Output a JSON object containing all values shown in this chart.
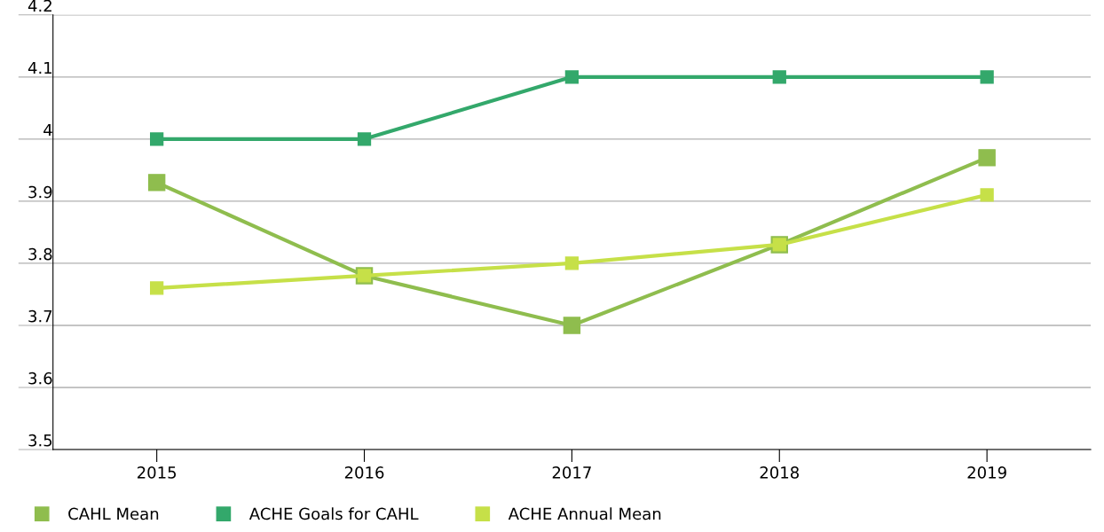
{
  "chart_data": {
    "type": "line",
    "categories": [
      "2015",
      "2016",
      "2017",
      "2018",
      "2019"
    ],
    "series": [
      {
        "name": "CAHL Mean",
        "color": "#8fbd4e",
        "values": [
          3.93,
          3.78,
          3.7,
          3.83,
          3.97
        ]
      },
      {
        "name": "ACHE Goals for CAHL",
        "color": "#33a86b",
        "values": [
          4.0,
          4.0,
          4.1,
          4.1,
          4.1
        ]
      },
      {
        "name": "ACHE Annual Mean",
        "color": "#c6e048",
        "values": [
          3.76,
          3.78,
          3.8,
          3.83,
          3.91
        ]
      }
    ],
    "ylim": [
      3.5,
      4.2
    ],
    "yticks": [
      3.5,
      3.6,
      3.7,
      3.8,
      3.9,
      4,
      4.1,
      4.2
    ],
    "grid": "y",
    "legend": "bottom",
    "marker": "square",
    "line_style": "solid"
  }
}
